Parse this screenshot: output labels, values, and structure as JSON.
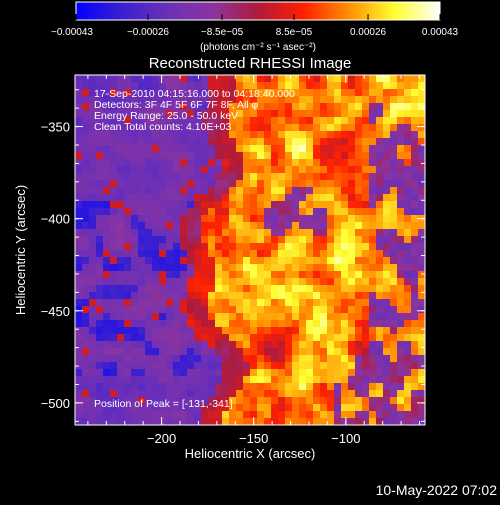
{
  "chart_data": {
    "type": "heatmap",
    "title": "Reconstructed RHESSI Image",
    "xlabel": "Heliocentric X (arcsec)",
    "ylabel": "Heliocentric Y (arcsec)",
    "xlim": [
      -247,
      -57
    ],
    "ylim": [
      -512,
      -322
    ],
    "xticks": [
      {
        "value": -200,
        "label": "−200"
      },
      {
        "value": -150,
        "label": "−150"
      },
      {
        "value": -100,
        "label": "−100"
      }
    ],
    "yticks": [
      {
        "value": -350,
        "label": "−350"
      },
      {
        "value": -400,
        "label": "−400"
      },
      {
        "value": -450,
        "label": "−450"
      },
      {
        "value": -500,
        "label": "−500"
      }
    ],
    "colorbar": {
      "range": [
        -0.00043,
        0.00043
      ],
      "ticks": [
        {
          "value": -0.00043,
          "label": "−0.00043"
        },
        {
          "value": -0.00026,
          "label": "−0.00026"
        },
        {
          "value": -8.5e-05,
          "label": "−8.5e−05"
        },
        {
          "value": 8.5e-05,
          "label": "8.5e−05"
        },
        {
          "value": 0.00026,
          "label": "0.00026"
        },
        {
          "value": 0.00043,
          "label": "0.00043"
        }
      ],
      "unit_label": "(photons cm⁻² s⁻¹ asec⁻²)",
      "colors": [
        "#0000ff",
        "#3a1fd0",
        "#6a2fb8",
        "#8a35a0",
        "#b01a3a",
        "#ff2000",
        "#ff9000",
        "#ffff30",
        "#ffffff"
      ]
    },
    "annotations": [
      "17-Sep-2010 04:15:16.000 to 04:18:40.000",
      "Detectors: 3F 4F 5F 6F 7F 8F, All φ",
      "Energy Range: 25.0 - 50.0 keV",
      "Clean    Total counts: 4.10E+03"
    ],
    "peak_label": "Position of Peak = [-131,-341]",
    "peak": {
      "x": -131,
      "y": -341
    }
  },
  "footer": {
    "timestamp": "10-May-2022 07:02"
  }
}
